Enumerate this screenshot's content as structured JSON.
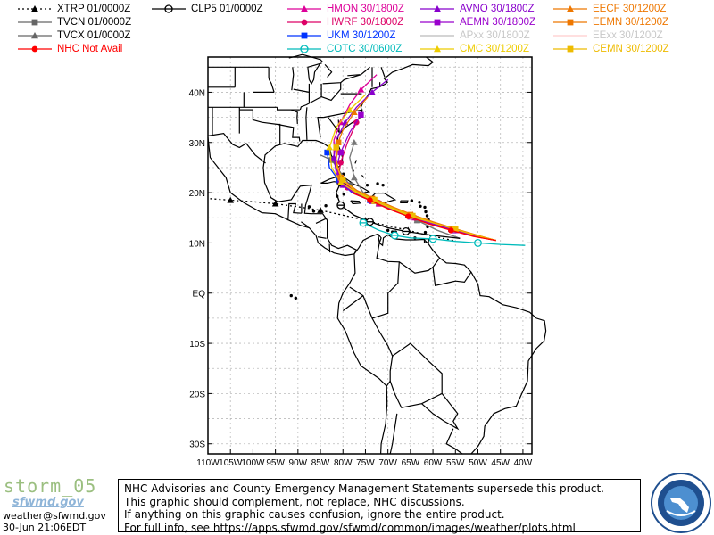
{
  "legend": [
    {
      "label": "XTRP 01/0000Z",
      "color": "#000000",
      "marker": "triangle",
      "line": "dotted"
    },
    {
      "label": "TVCN 01/0000Z",
      "color": "#666666",
      "marker": "square",
      "line": "solid"
    },
    {
      "label": "TVCX 01/0000Z",
      "color": "#666666",
      "marker": "triangle",
      "line": "solid"
    },
    {
      "label": "NHC Not Avail",
      "color": "#ff0000",
      "marker": "circle",
      "line": "solid"
    },
    {
      "label": "CLP5 01/0000Z",
      "color": "#000000",
      "marker": "theta",
      "line": "solid"
    },
    {
      "label": "HMON 30/1800Z",
      "color": "#dd0099",
      "marker": "triangle",
      "line": "solid"
    },
    {
      "label": "HWRF 30/1800Z",
      "color": "#dd0066",
      "marker": "circle",
      "line": "solid"
    },
    {
      "label": "UKM 30/1200Z",
      "color": "#0033ff",
      "marker": "square",
      "line": "solid"
    },
    {
      "label": "COTC 30/0600Z",
      "color": "#00bbbb",
      "marker": "theta",
      "line": "solid"
    },
    {
      "label": "AVNO 30/1800Z",
      "color": "#8800cc",
      "marker": "triangle",
      "line": "solid"
    },
    {
      "label": "AEMN 30/1800Z",
      "color": "#9900cc",
      "marker": "square",
      "line": "solid"
    },
    {
      "label": "APxx 30/1800Z",
      "color": "#bbbbbb",
      "marker": "none",
      "line": "solid"
    },
    {
      "label": "CMC 30/1200Z",
      "color": "#eecc00",
      "marker": "triangle",
      "line": "solid"
    },
    {
      "label": "EECF 30/1200Z",
      "color": "#ee7700",
      "marker": "triangle",
      "line": "solid"
    },
    {
      "label": "EEMN 30/1200Z",
      "color": "#ee7700",
      "marker": "square",
      "line": "solid"
    },
    {
      "label": "EExx 30/1200Z",
      "color": "#ffcccc",
      "marker": "none",
      "line": "solid"
    },
    {
      "label": "CEMN 30/1200Z",
      "color": "#eebb00",
      "marker": "square",
      "line": "solid"
    }
  ],
  "map": {
    "lat_labels": [
      "40N",
      "30N",
      "20N",
      "10N",
      "EQ",
      "10S",
      "20S",
      "30S"
    ],
    "lon_labels": [
      "110W",
      "105W",
      "100W",
      "95W",
      "90W",
      "85W",
      "80W",
      "75W",
      "70W",
      "65W",
      "60W",
      "55W",
      "50W",
      "45W",
      "40W"
    ],
    "grid": true,
    "extent": {
      "west": -110,
      "east": -38,
      "south": -32,
      "north": 47
    },
    "tracks": [
      {
        "model": "XTRP",
        "color": "#000000",
        "dash": "2,3",
        "marker": "triangle",
        "points": [
          [
            -55.5,
            10.5
          ],
          [
            -61,
            11.5
          ],
          [
            -65.5,
            12.5
          ],
          [
            -70.5,
            13.5
          ],
          [
            -75,
            14.5
          ],
          [
            -80,
            15.5
          ],
          [
            -85,
            16.5
          ],
          [
            -90,
            17.2
          ],
          [
            -95,
            17.8
          ],
          [
            -100,
            18.2
          ],
          [
            -105,
            18.5
          ],
          [
            -109.5,
            18.8
          ]
        ]
      },
      {
        "model": "TVCN",
        "color": "#666666",
        "marker": "square",
        "points": [
          [
            -54,
            10.9
          ],
          [
            -59,
            12.5
          ],
          [
            -63.5,
            14.5
          ],
          [
            -68,
            16.2
          ],
          [
            -72,
            17.8
          ],
          [
            -75.5,
            19.5
          ],
          [
            -78.5,
            21.5
          ],
          [
            -80.5,
            24
          ],
          [
            -82.5,
            26.5
          ],
          [
            -85,
            27.5
          ]
        ]
      },
      {
        "model": "TVCX",
        "color": "#777777",
        "marker": "triangle",
        "points": [
          [
            -54,
            10.9
          ],
          [
            -59,
            12.5
          ],
          [
            -63.5,
            14.5
          ],
          [
            -68,
            16.2
          ],
          [
            -72,
            18
          ],
          [
            -75.5,
            20
          ],
          [
            -77.5,
            23
          ],
          [
            -78.5,
            27
          ],
          [
            -77.5,
            30
          ]
        ]
      },
      {
        "model": "CLP5",
        "color": "#000000",
        "marker": "theta",
        "points": [
          [
            -54,
            10.9
          ],
          [
            -60,
            11.5
          ],
          [
            -66,
            12.3
          ],
          [
            -70,
            13
          ],
          [
            -74,
            14.2
          ],
          [
            -77.5,
            15.5
          ],
          [
            -80.5,
            17.5
          ],
          [
            -81.5,
            20
          ],
          [
            -80.5,
            22
          ]
        ]
      },
      {
        "model": "HMON",
        "color": "#dd0099",
        "marker": "triangle",
        "points": [
          [
            -46,
            10.5
          ],
          [
            -50,
            11.2
          ],
          [
            -55,
            12.5
          ],
          [
            -60,
            14
          ],
          [
            -64,
            15
          ],
          [
            -68,
            16.2
          ],
          [
            -72,
            17.8
          ],
          [
            -76,
            19.5
          ],
          [
            -79,
            21.5
          ],
          [
            -81,
            24
          ],
          [
            -82,
            27
          ],
          [
            -82,
            30.5
          ],
          [
            -80.5,
            34
          ],
          [
            -78.5,
            37.5
          ],
          [
            -76,
            40.5
          ],
          [
            -72.5,
            43.5
          ]
        ]
      },
      {
        "model": "HWRF",
        "color": "#dd0066",
        "marker": "circle",
        "points": [
          [
            -46,
            10.5
          ],
          [
            -50,
            11.2
          ],
          [
            -55,
            12.5
          ],
          [
            -60,
            14
          ],
          [
            -64,
            15
          ],
          [
            -68,
            16.5
          ],
          [
            -72,
            18
          ],
          [
            -76,
            19.5
          ],
          [
            -79,
            21
          ],
          [
            -81,
            23
          ],
          [
            -80.5,
            26
          ],
          [
            -79,
            30
          ],
          [
            -77,
            34
          ]
        ]
      },
      {
        "model": "UKM",
        "color": "#0033ff",
        "marker": "square",
        "points": [
          [
            -46,
            10.5
          ],
          [
            -51,
            11.5
          ],
          [
            -56,
            12.8
          ],
          [
            -61,
            14
          ],
          [
            -65.5,
            15.5
          ],
          [
            -70,
            17
          ],
          [
            -74,
            18.5
          ],
          [
            -78,
            20
          ],
          [
            -81,
            22.5
          ],
          [
            -83,
            25
          ],
          [
            -83.5,
            28
          ]
        ]
      },
      {
        "model": "COTC",
        "color": "#00bbbb",
        "marker": "theta",
        "points": [
          [
            -39.5,
            9.5
          ],
          [
            -45,
            9.7
          ],
          [
            -50,
            10
          ],
          [
            -55,
            10.3
          ],
          [
            -60,
            10.8
          ],
          [
            -65,
            11
          ],
          [
            -68.5,
            11.5
          ],
          [
            -72,
            12.5
          ],
          [
            -75.5,
            14
          ]
        ]
      },
      {
        "model": "AVNO",
        "color": "#8800cc",
        "marker": "triangle",
        "points": [
          [
            -46,
            10.5
          ],
          [
            -50,
            11.3
          ],
          [
            -55,
            12.5
          ],
          [
            -60,
            13.8
          ],
          [
            -64.5,
            15.2
          ],
          [
            -69,
            16.8
          ],
          [
            -73,
            18.3
          ],
          [
            -77,
            19.8
          ],
          [
            -80,
            21.5
          ],
          [
            -81.5,
            24
          ],
          [
            -82,
            27
          ],
          [
            -81.5,
            30.5
          ],
          [
            -79.5,
            34
          ],
          [
            -77,
            37
          ],
          [
            -73.5,
            40
          ],
          [
            -70,
            42.5
          ]
        ]
      },
      {
        "model": "AEMN",
        "color": "#9900cc",
        "marker": "square",
        "points": [
          [
            -46,
            10.5
          ],
          [
            -50.5,
            11.3
          ],
          [
            -55.5,
            12.5
          ],
          [
            -60.5,
            13.8
          ],
          [
            -65,
            15.2
          ],
          [
            -69.5,
            16.8
          ],
          [
            -73.5,
            18.3
          ],
          [
            -77.5,
            19.8
          ],
          [
            -80.5,
            22
          ],
          [
            -81.5,
            25
          ],
          [
            -80.5,
            28
          ],
          [
            -78.5,
            32
          ],
          [
            -76,
            35.5
          ]
        ]
      },
      {
        "model": "CMC",
        "color": "#eecc00",
        "marker": "triangle",
        "points": [
          [
            -46,
            10.5
          ],
          [
            -50,
            11.5
          ],
          [
            -55,
            12.8
          ],
          [
            -60,
            14
          ],
          [
            -65,
            15.3
          ],
          [
            -69,
            16.8
          ],
          [
            -73,
            18.3
          ],
          [
            -77,
            20
          ],
          [
            -80.5,
            22
          ],
          [
            -82.5,
            25
          ],
          [
            -83,
            29
          ],
          [
            -81.5,
            33
          ],
          [
            -78.5,
            36.5
          ],
          [
            -75,
            39.5
          ]
        ]
      },
      {
        "model": "EECF",
        "color": "#ee7700",
        "marker": "triangle",
        "points": [
          [
            -46,
            10.5
          ],
          [
            -50,
            11.5
          ],
          [
            -55,
            12.8
          ],
          [
            -60,
            14.2
          ],
          [
            -64.5,
            15.6
          ],
          [
            -69,
            17.2
          ],
          [
            -73,
            18.8
          ],
          [
            -77,
            20.5
          ],
          [
            -80,
            22.5
          ],
          [
            -81.5,
            25.5
          ],
          [
            -81.5,
            29
          ],
          [
            -80,
            32.5
          ],
          [
            -77.5,
            36
          ],
          [
            -74.5,
            39
          ]
        ]
      },
      {
        "model": "EEMN",
        "color": "#ee7700",
        "marker": "square",
        "points": [
          [
            -46,
            10.5
          ],
          [
            -50.5,
            11.5
          ],
          [
            -55.5,
            12.8
          ],
          [
            -60.5,
            14.2
          ],
          [
            -65,
            15.6
          ],
          [
            -69.5,
            17.2
          ],
          [
            -73.5,
            18.8
          ],
          [
            -77.5,
            20.5
          ],
          [
            -80.5,
            23
          ],
          [
            -81.5,
            26.5
          ],
          [
            -81,
            30
          ]
        ]
      },
      {
        "model": "CEMN",
        "color": "#eebb00",
        "marker": "square",
        "points": [
          [
            -46,
            10.5
          ],
          [
            -50,
            11.4
          ],
          [
            -55,
            12.7
          ],
          [
            -60,
            14
          ],
          [
            -64.5,
            15.4
          ],
          [
            -69,
            17
          ],
          [
            -73,
            18.6
          ],
          [
            -77,
            20.2
          ],
          [
            -80,
            22.5
          ],
          [
            -81.5,
            25.5
          ],
          [
            -81.5,
            29
          ]
        ]
      },
      {
        "model": "NHC",
        "color": "#ff0000",
        "marker": "circle",
        "points": [
          [
            -46,
            10.5
          ],
          [
            -51,
            11.3
          ],
          [
            -56,
            12.5
          ],
          [
            -61,
            13.8
          ],
          [
            -65.5,
            15.3
          ],
          [
            -70,
            16.8
          ],
          [
            -74,
            18.5
          ],
          [
            -78,
            20
          ]
        ]
      }
    ]
  },
  "footer": {
    "storm": "storm_05",
    "brand": "sfwmd.gov",
    "email": "weather@sfwmd.gov",
    "time": "30-Jun 21:06EDT",
    "notice": [
      "NHC Advisories and County Emergency Management Statements supersede this product.",
      "This graphic should complement, not replace, NHC discussions.",
      "If anything on this graphic causes confusion, ignore the entire product.",
      "For full info, see  https://apps.sfwmd.gov/sfwmd/common/images/weather/plots.html"
    ]
  }
}
